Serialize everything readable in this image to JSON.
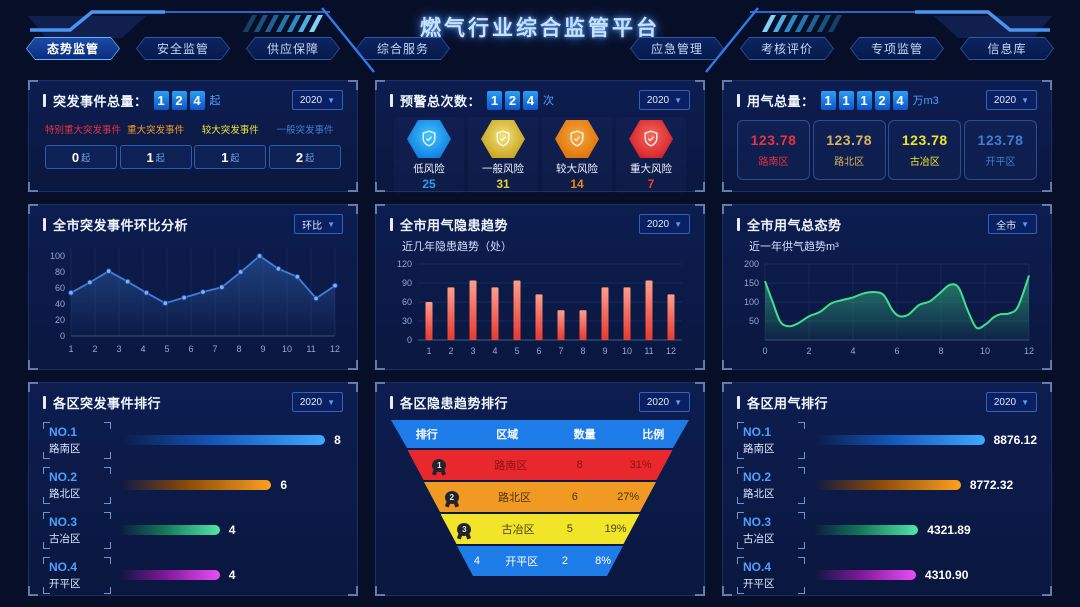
{
  "app": {
    "title": "燃气行业综合监管平台"
  },
  "nav": {
    "left": [
      {
        "label": "态势监管",
        "active": true
      },
      {
        "label": "安全监管",
        "active": false
      },
      {
        "label": "供应保障",
        "active": false
      },
      {
        "label": "综合服务",
        "active": false
      }
    ],
    "right": [
      {
        "label": "应急管理",
        "active": false
      },
      {
        "label": "考核评价",
        "active": false
      },
      {
        "label": "专项监管",
        "active": false
      },
      {
        "label": "信息库",
        "active": false
      }
    ]
  },
  "stats": {
    "incidents": {
      "title": "突发事件总量：",
      "digits": [
        "1",
        "2",
        "4"
      ],
      "unit": "起",
      "year": "2020",
      "items": [
        {
          "label": "特别重大突发事件",
          "value": "0",
          "unit": "起",
          "color": "#e8333c"
        },
        {
          "label": "重大突发事件",
          "value": "1",
          "unit": "起",
          "color": "#f59a23"
        },
        {
          "label": "较大突发事件",
          "value": "1",
          "unit": "起",
          "color": "#f0e23a"
        },
        {
          "label": "一般突发事件",
          "value": "2",
          "unit": "起",
          "color": "#3e7fd6"
        }
      ]
    },
    "warnings": {
      "title": "预警总次数：",
      "digits": [
        "1",
        "2",
        "4"
      ],
      "unit": "次",
      "year": "2020",
      "items": [
        {
          "label": "低风险",
          "value": "25",
          "color": "#2e9ff0",
          "hex_light": "#45c6ff",
          "hex_dark": "#0d7de0"
        },
        {
          "label": "一般风险",
          "value": "31",
          "color": "#e8cf3a",
          "hex_light": "#f2e47e",
          "hex_dark": "#c9a21a"
        },
        {
          "label": "较大风险",
          "value": "14",
          "color": "#f08419",
          "hex_light": "#f5a93f",
          "hex_dark": "#e07208"
        },
        {
          "label": "重大风险",
          "value": "7",
          "color": "#f03a3a",
          "hex_light": "#f56a5a",
          "hex_dark": "#d6202a"
        }
      ]
    },
    "gas": {
      "title": "用气总量：",
      "digits": [
        "1",
        "1",
        "1",
        "2",
        "4"
      ],
      "unit": "万m3",
      "year": "2020",
      "cards": [
        {
          "value": "123.78",
          "label": "路南区",
          "color": "#e8333c"
        },
        {
          "value": "123.78",
          "label": "路北区",
          "color": "#d8b35a"
        },
        {
          "value": "123.78",
          "label": "古冶区",
          "color": "#f0e42a"
        },
        {
          "value": "123.78",
          "label": "开平区",
          "color": "#3e7fd6"
        }
      ]
    }
  },
  "chart_data": {
    "incident_trend": {
      "type": "line",
      "title": "全市突发事件环比分析",
      "filter": "环比",
      "x_tick_labels": [
        "1",
        "2",
        "3",
        "4",
        "5",
        "6",
        "7",
        "8",
        "9",
        "10",
        "11",
        "12"
      ],
      "y_ticks": [
        0,
        20,
        40,
        60,
        80,
        100
      ],
      "ylim": [
        0,
        110
      ],
      "values": [
        54,
        67,
        81,
        68,
        54,
        41,
        48,
        55,
        61,
        80,
        100,
        84,
        74,
        47,
        63
      ],
      "line_color": "#3f7ddc",
      "marker_color": "#7fb0f5"
    },
    "hazard_trend": {
      "type": "bar",
      "title": "全市用气隐患趋势",
      "filter": "2020",
      "subtitle": "近几年隐患趋势（处）",
      "categories": [
        "1",
        "2",
        "3",
        "4",
        "5",
        "6",
        "7",
        "8",
        "9",
        "10",
        "11",
        "12"
      ],
      "values": [
        60,
        83,
        94,
        83,
        94,
        72,
        47,
        47,
        83,
        83,
        94,
        72
      ],
      "y_ticks": [
        0,
        30,
        60,
        90,
        120
      ],
      "ylim": [
        0,
        120
      ],
      "bar_color_top": "#ff9e8c",
      "bar_color_bottom": "#e8382e"
    },
    "gas_trend": {
      "type": "area",
      "title": "全市用气总态势",
      "filter": "全市",
      "subtitle": "近一年供气趋势m³",
      "x_ticks": [
        0,
        2,
        4,
        6,
        8,
        10,
        12
      ],
      "y_ticks": [
        50,
        100,
        150,
        200
      ],
      "xlim": [
        0,
        12
      ],
      "ylim": [
        0,
        200
      ],
      "points": [
        [
          0,
          155
        ],
        [
          0.35,
          100
        ],
        [
          0.7,
          48
        ],
        [
          1.1,
          36
        ],
        [
          1.5,
          44
        ],
        [
          2,
          62
        ],
        [
          2.5,
          74
        ],
        [
          3,
          96
        ],
        [
          3.5,
          105
        ],
        [
          4,
          112
        ],
        [
          4.5,
          123
        ],
        [
          5,
          126
        ],
        [
          5.4,
          118
        ],
        [
          5.8,
          78
        ],
        [
          6.1,
          63
        ],
        [
          6.5,
          66
        ],
        [
          7,
          92
        ],
        [
          7.5,
          102
        ],
        [
          8,
          126
        ],
        [
          8.4,
          145
        ],
        [
          8.8,
          138
        ],
        [
          9.2,
          80
        ],
        [
          9.6,
          33
        ],
        [
          10,
          40
        ],
        [
          10.4,
          60
        ],
        [
          10.7,
          68
        ],
        [
          11.1,
          70
        ],
        [
          11.5,
          88
        ],
        [
          12,
          170
        ]
      ],
      "line_color": "#3fe08c"
    },
    "rank_incidents": {
      "type": "bar-horizontal",
      "title": "各区突发事件排行",
      "filter": "2020",
      "rows": [
        {
          "rank": "NO.1",
          "region": "路南区",
          "value": "8",
          "bar_pct": 92,
          "color": "#3fa9ff",
          "color_dark": "#1256b8"
        },
        {
          "rank": "NO.2",
          "region": "路北区",
          "value": "6",
          "bar_pct": 68,
          "color": "#ffa11e",
          "color_dark": "#8a4a08"
        },
        {
          "rank": "NO.3",
          "region": "古冶区",
          "value": "4",
          "bar_pct": 45,
          "color": "#52e6a7",
          "color_dark": "#14785a"
        },
        {
          "rank": "NO.4",
          "region": "开平区",
          "value": "4",
          "bar_pct": 45,
          "color": "#ea4df5",
          "color_dark": "#7a1896"
        }
      ]
    },
    "rank_hazards": {
      "type": "funnel-table",
      "title": "各区隐患趋势排行",
      "filter": "2020",
      "headers": [
        "排行",
        "区域",
        "数量",
        "比例"
      ],
      "header_bg": "#1e7ce8",
      "rows": [
        {
          "rank": "1",
          "medal": true,
          "region": "路南区",
          "count": "8",
          "pct": "31%",
          "bg": "#e8282d",
          "text": "#8a1014"
        },
        {
          "rank": "2",
          "medal": true,
          "region": "路北区",
          "count": "6",
          "pct": "27%",
          "bg": "#f09a23",
          "text": "#503005"
        },
        {
          "rank": "3",
          "medal": true,
          "region": "古冶区",
          "count": "5",
          "pct": "19%",
          "bg": "#f2e428",
          "text": "#45400a"
        },
        {
          "rank": "4",
          "medal": false,
          "region": "开平区",
          "count": "2",
          "pct": "8%",
          "bg": "#1e7ce8",
          "text": "#ffffff"
        }
      ]
    },
    "rank_gas": {
      "type": "bar-horizontal",
      "title": "各区用气排行",
      "filter": "2020",
      "rows": [
        {
          "rank": "NO.1",
          "region": "路南区",
          "value": "8876.12",
          "bar_pct": 88,
          "color": "#3fa9ff",
          "color_dark": "#1256b8"
        },
        {
          "rank": "NO.2",
          "region": "路北区",
          "value": "8772.32",
          "bar_pct": 66,
          "color": "#ffa11e",
          "color_dark": "#8a4a08"
        },
        {
          "rank": "NO.3",
          "region": "古冶区",
          "value": "4321.89",
          "bar_pct": 47,
          "color": "#52e6a7",
          "color_dark": "#14785a"
        },
        {
          "rank": "NO.4",
          "region": "开平区",
          "value": "4310.90",
          "bar_pct": 46,
          "color": "#ea4df5",
          "color_dark": "#7a1896"
        }
      ]
    }
  }
}
